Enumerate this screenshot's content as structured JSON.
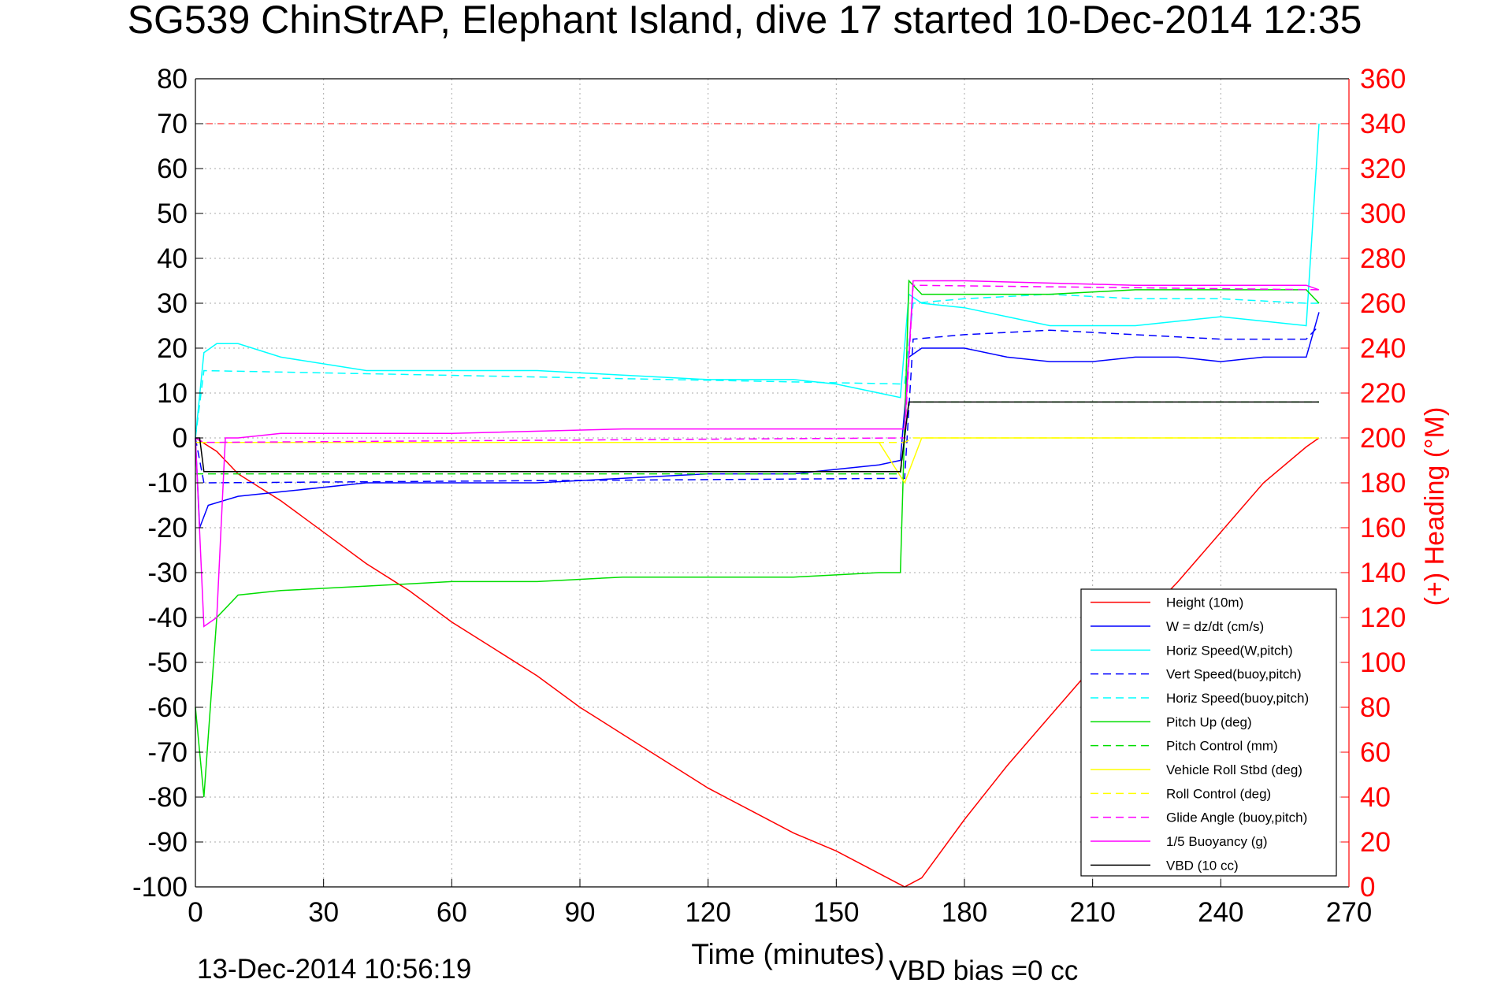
{
  "chart_data": {
    "type": "line",
    "title": "SG539 ChinStrAP, Elephant Island, dive 17 started 10-Dec-2014 12:35",
    "xlabel": "Time (minutes)",
    "ylabel": "",
    "ylabel_right": "(+) Heading (°M)",
    "footer_left": "13-Dec-2014 10:56:19",
    "footer_right": "VBD bias =0 cc",
    "xlim": [
      0,
      270
    ],
    "ylim": [
      -100,
      80
    ],
    "ylim_right": [
      0,
      360
    ],
    "x_ticks": [
      "0",
      "30",
      "60",
      "90",
      "120",
      "150",
      "180",
      "210",
      "240",
      "270"
    ],
    "y_ticks": [
      "80",
      "70",
      "60",
      "50",
      "40",
      "30",
      "20",
      "10",
      "0",
      "-10",
      "-20",
      "-30",
      "-40",
      "-50",
      "-60",
      "-70",
      "-80",
      "-90",
      "-100"
    ],
    "y_ticks_right": [
      "360",
      "340",
      "320",
      "300",
      "280",
      "260",
      "240",
      "220",
      "200",
      "180",
      "160",
      "140",
      "120",
      "100",
      "80",
      "60",
      "40",
      "20",
      "0"
    ],
    "grid": true,
    "legend_position": "bottom-right",
    "heading_reference_line": 340,
    "series": [
      {
        "name": "Height (10m)",
        "color": "#ff0000",
        "style": "solid",
        "x": [
          0,
          5,
          10,
          20,
          30,
          40,
          50,
          60,
          70,
          80,
          90,
          100,
          110,
          120,
          130,
          140,
          150,
          160,
          166,
          170,
          180,
          190,
          200,
          210,
          220,
          230,
          240,
          250,
          260,
          263
        ],
        "y": [
          0,
          -3,
          -8,
          -14,
          -21,
          -28,
          -34,
          -41,
          -47,
          -53,
          -60,
          -66,
          -72,
          -78,
          -83,
          -88,
          -92,
          -97,
          -100,
          -98,
          -85,
          -73,
          -62,
          -51,
          -42,
          -32,
          -21,
          -10,
          -2,
          0
        ]
      },
      {
        "name": "W = dz/dt (cm/s)",
        "color": "#0000ff",
        "style": "solid",
        "x": [
          0,
          1,
          3,
          10,
          20,
          40,
          60,
          80,
          100,
          120,
          140,
          150,
          160,
          165,
          167,
          170,
          180,
          190,
          200,
          210,
          220,
          230,
          240,
          250,
          260,
          263
        ],
        "y": [
          0,
          -20,
          -15,
          -13,
          -12,
          -10,
          -10,
          -10,
          -9,
          -8,
          -8,
          -7,
          -6,
          -5,
          18,
          20,
          20,
          18,
          17,
          17,
          18,
          18,
          17,
          18,
          18,
          28
        ]
      },
      {
        "name": "Horiz Speed(W,pitch)",
        "color": "#00ffff",
        "style": "solid",
        "x": [
          0,
          2,
          5,
          10,
          20,
          40,
          60,
          80,
          100,
          120,
          140,
          150,
          160,
          165,
          167,
          170,
          180,
          190,
          200,
          210,
          220,
          230,
          240,
          250,
          260,
          263
        ],
        "y": [
          0,
          19,
          21,
          21,
          18,
          15,
          15,
          15,
          14,
          13,
          13,
          12,
          10,
          9,
          32,
          30,
          29,
          27,
          25,
          25,
          25,
          26,
          27,
          26,
          25,
          70
        ]
      },
      {
        "name": "Vert Speed(buoy,pitch)",
        "color": "#0000ff",
        "style": "dashed",
        "x": [
          0,
          2,
          166,
          168,
          180,
          200,
          220,
          240,
          260,
          263
        ],
        "y": [
          0,
          -10,
          -9,
          22,
          23,
          24,
          23,
          22,
          22,
          25
        ]
      },
      {
        "name": "Horiz Speed(buoy,pitch)",
        "color": "#00ffff",
        "style": "dashed",
        "x": [
          0,
          2,
          166,
          168,
          180,
          200,
          220,
          240,
          260,
          263
        ],
        "y": [
          0,
          15,
          12,
          30,
          31,
          32,
          31,
          31,
          30,
          30
        ]
      },
      {
        "name": "Pitch Up (deg)",
        "color": "#00dd00",
        "style": "solid",
        "x": [
          0,
          2,
          5,
          10,
          20,
          40,
          60,
          80,
          100,
          120,
          140,
          160,
          165,
          167,
          170,
          180,
          200,
          220,
          240,
          260,
          263
        ],
        "y": [
          -60,
          -80,
          -40,
          -35,
          -34,
          -33,
          -32,
          -32,
          -31,
          -31,
          -31,
          -30,
          -30,
          35,
          32,
          32,
          32,
          33,
          33,
          33,
          30
        ]
      },
      {
        "name": "Pitch Control (mm)",
        "color": "#00dd00",
        "style": "dashed",
        "x": [
          0,
          2,
          165,
          167,
          263
        ],
        "y": [
          -8,
          -8,
          -8,
          8,
          8
        ]
      },
      {
        "name": "Vehicle Roll Stbd (deg)",
        "color": "#ffff00",
        "style": "solid",
        "x": [
          0,
          5,
          20,
          40,
          60,
          80,
          100,
          120,
          140,
          160,
          166,
          170,
          190,
          210,
          230,
          250,
          263
        ],
        "y": [
          -1,
          -1,
          -1,
          -1,
          -1,
          -1,
          -1,
          -1,
          -1,
          -1,
          -10,
          0,
          0,
          0,
          0,
          0,
          0
        ]
      },
      {
        "name": "Roll Control (deg)",
        "color": "#ffff00",
        "style": "dashed",
        "x": [
          0,
          5,
          166,
          168,
          263
        ],
        "y": [
          -1,
          -1,
          -1,
          0,
          0
        ]
      },
      {
        "name": "Glide Angle (buoy,pitch)",
        "color": "#ff00ff",
        "style": "dashed",
        "x": [
          0,
          2,
          166,
          168,
          263
        ],
        "y": [
          0,
          -1,
          0,
          34,
          33
        ]
      },
      {
        "name": "1/5 Buoyancy (g)",
        "color": "#ff00ff",
        "style": "solid",
        "x": [
          0,
          2,
          5,
          7,
          10,
          20,
          60,
          100,
          140,
          166,
          168,
          180,
          220,
          260,
          263
        ],
        "y": [
          0,
          -42,
          -40,
          0,
          0,
          1,
          1,
          2,
          2,
          2,
          35,
          35,
          34,
          34,
          33
        ]
      },
      {
        "name": "VBD (10 cc)",
        "color": "#000000",
        "style": "solid",
        "x": [
          0,
          1,
          2,
          165,
          167,
          263
        ],
        "y": [
          0,
          0,
          -7.5,
          -7.5,
          8,
          8
        ]
      }
    ]
  }
}
